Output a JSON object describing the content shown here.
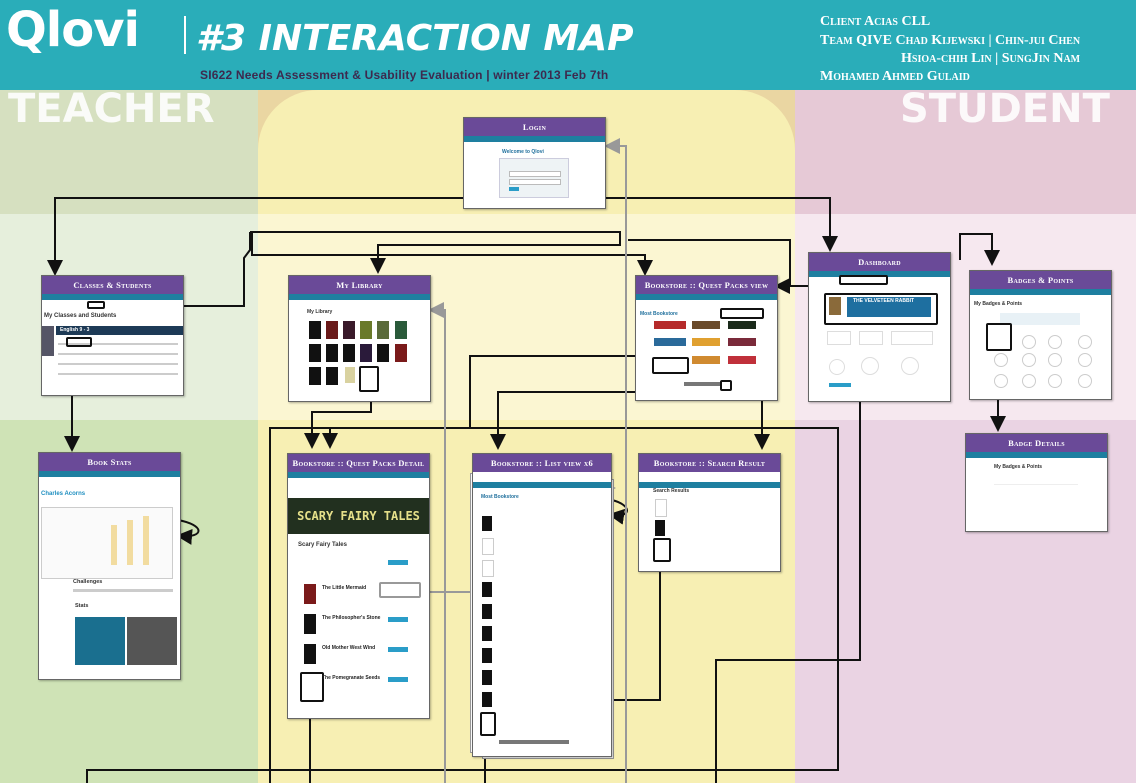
{
  "header": {
    "logo": "Qlovi",
    "title": "#3 INTERACTION MAP",
    "subtitle": "SI622 Needs Assessment & Usability Evaluation | winter 2013 Feb 7th",
    "client_line": "Client  Acias CLL",
    "team_line": "Team  QIVE   Chad Kijewski  | Chin-jui Chen",
    "members_line2": "Hsioa-chih Lin | SungJin Nam",
    "members_line3": "Mohamed Ahmed Gulaid"
  },
  "zones": {
    "teacher": "TEACHER",
    "student": "STUDENT"
  },
  "colors": {
    "header": "#2aadb9",
    "teacher": "#cfe1b8",
    "shared": "#f6eeb0",
    "student": "#ecd6e6",
    "tab": "#6a4a98"
  },
  "screens": {
    "login": {
      "title": "Login",
      "welcome": "Welcome to Qlovi"
    },
    "classes": {
      "title": "Classes & Students",
      "heading": "My Classes and Students",
      "class_name": "English 9 - 3"
    },
    "library": {
      "title": "My Library",
      "heading": "My Library"
    },
    "quest_view": {
      "title": "Bookstore :: Quest Packs view",
      "heading": "Most Bookstore"
    },
    "dashboard": {
      "title": "Dashboard",
      "banner": "THE VELVETEEN RABBIT"
    },
    "badges": {
      "title": "Badges & Points",
      "heading": "My Badges & Points"
    },
    "book_stats": {
      "title": "Book Stats",
      "student": "Charles Acorns",
      "section1": "Challenges",
      "section2": "Stats"
    },
    "quest_detail": {
      "title": "Bookstore :: Quest Packs Detail",
      "banner": "SCARY FAIRY TALES",
      "heading": "Scary Fairy Tales",
      "books": [
        "The Little Mermaid",
        "The Philosopher's Stone",
        "Old Mother West Wind",
        "The Pomegranate Seeds"
      ]
    },
    "list_view": {
      "title": "Bookstore :: List view x6",
      "heading": "Most Bookstore"
    },
    "search_result": {
      "title": "Bookstore :: Search Result",
      "heading": "Search Results"
    },
    "badge_details": {
      "title": "Badge Details",
      "heading": "My Badges & Points"
    }
  }
}
